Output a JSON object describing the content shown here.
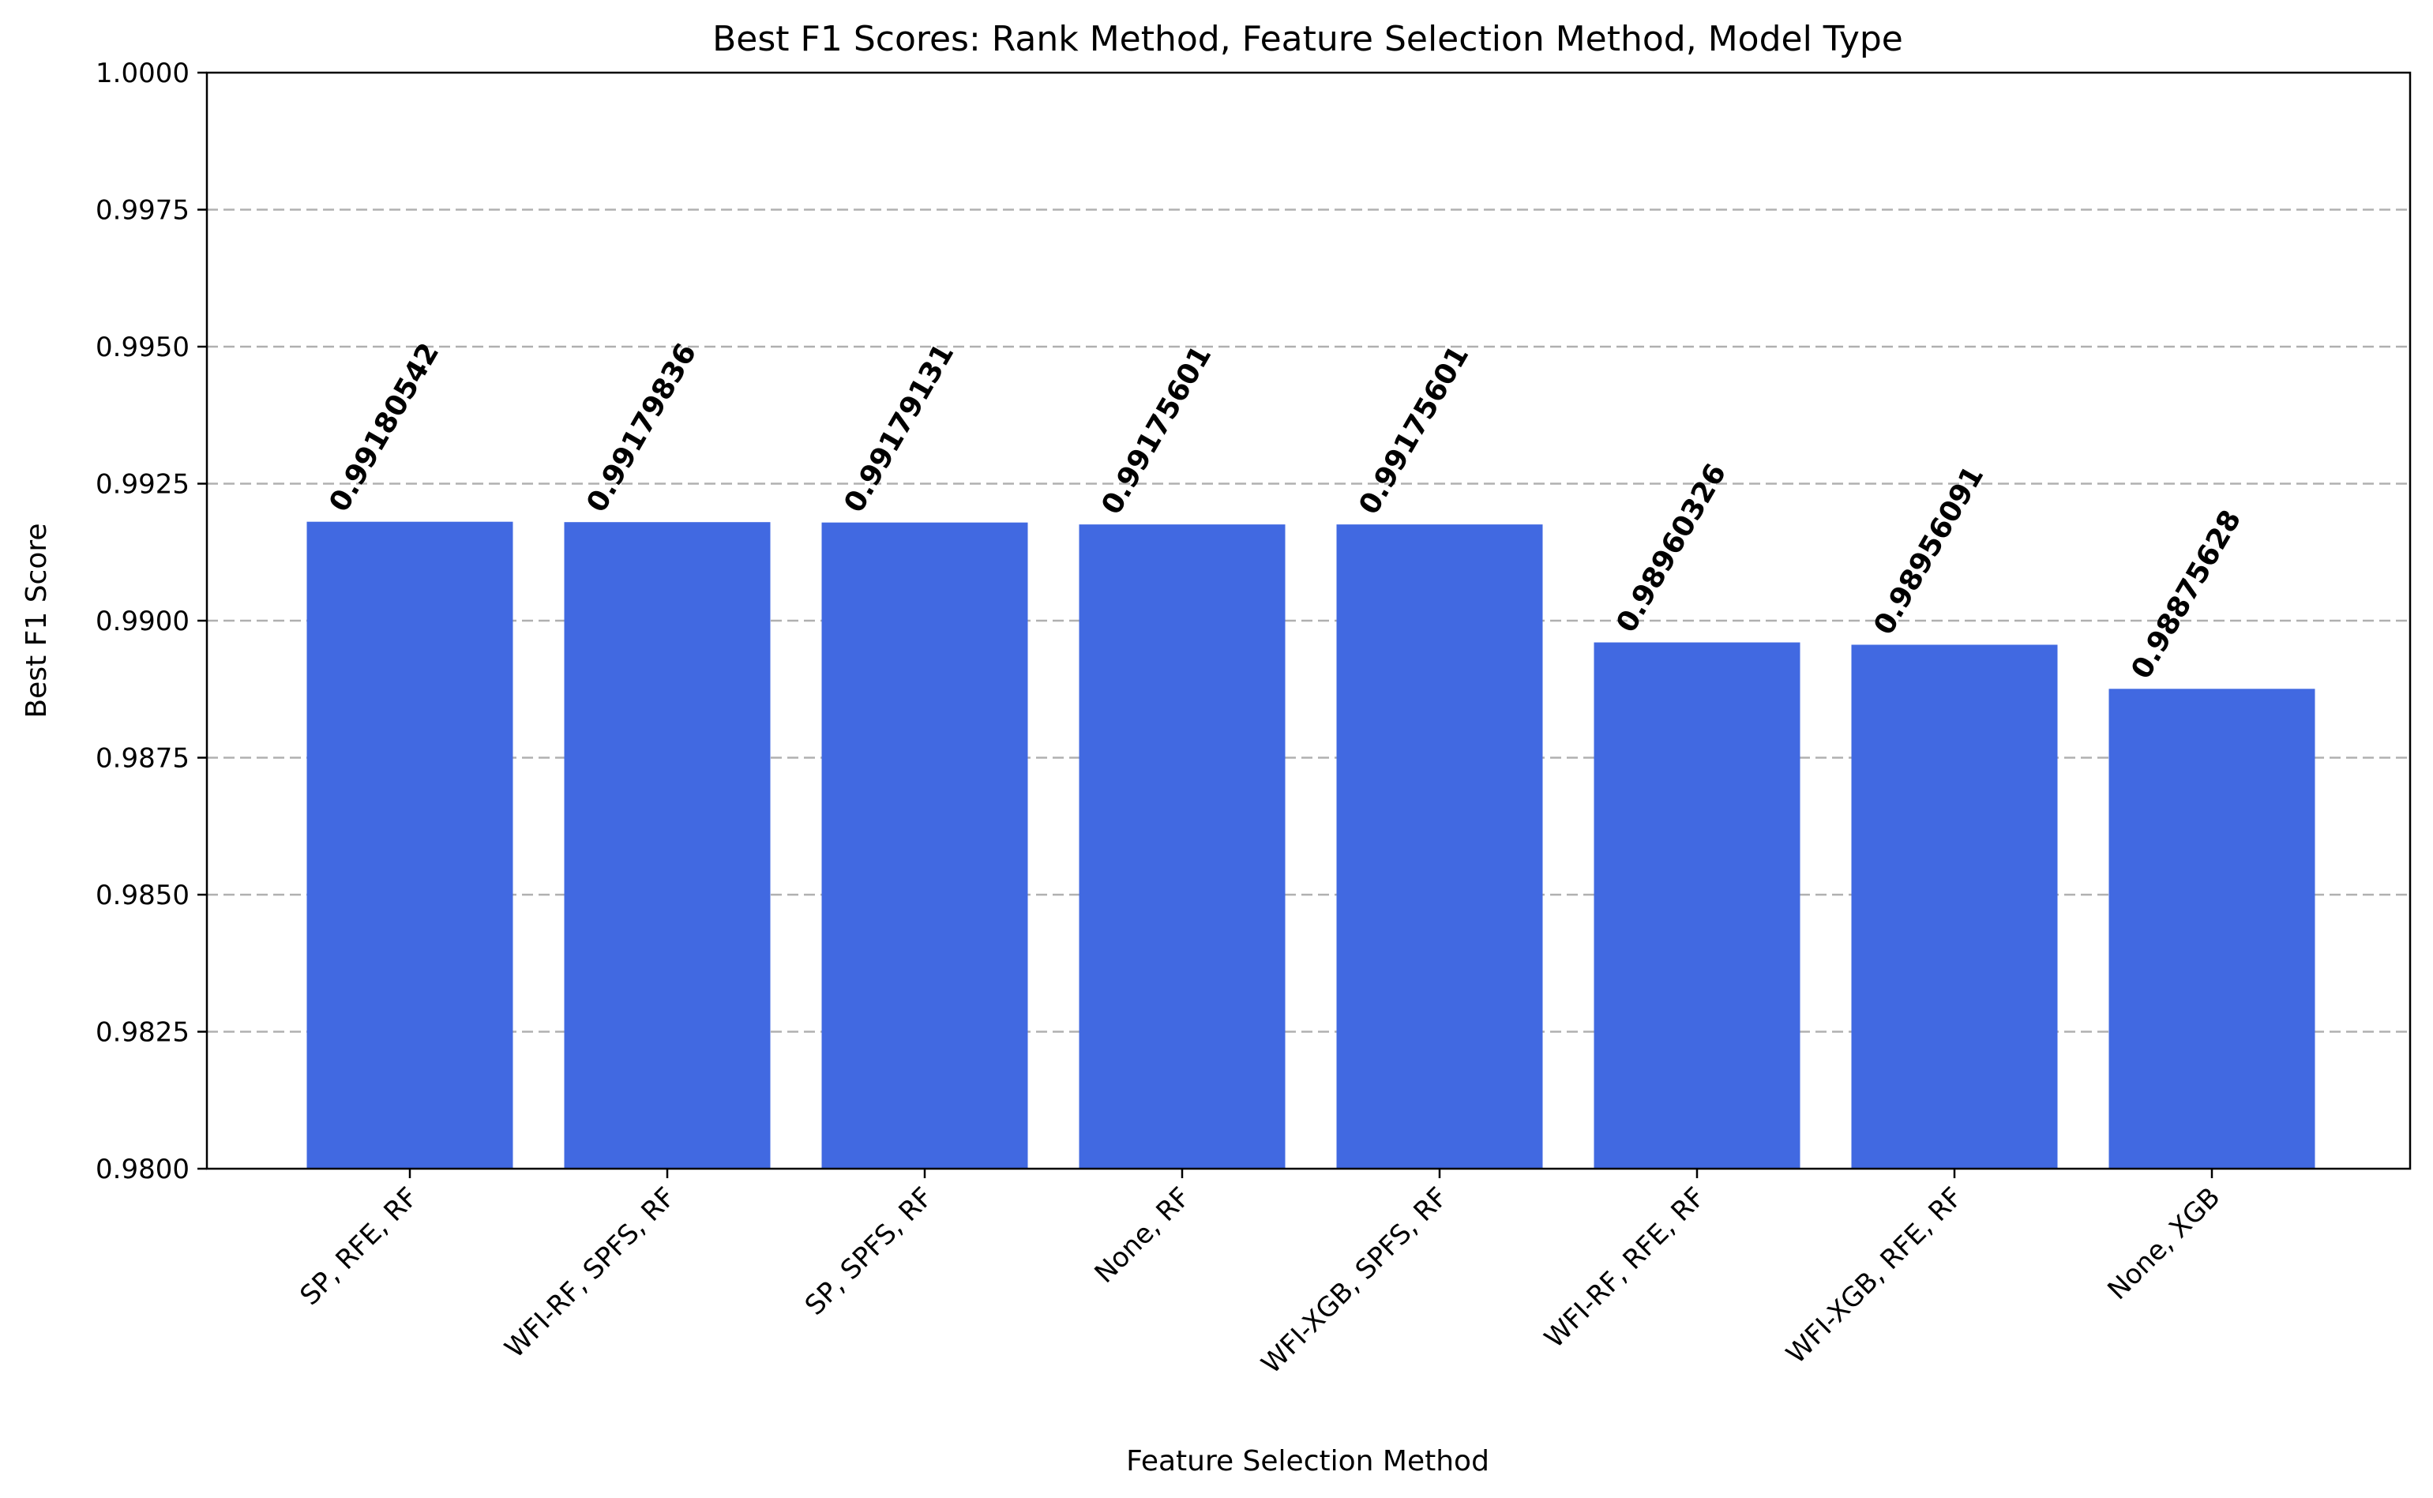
{
  "chart_data": {
    "type": "bar",
    "title": "Best F1 Scores: Rank Method, Feature Selection Method, Model Type",
    "xlabel": "Feature Selection Method",
    "ylabel": "Best F1 Score",
    "ylim": [
      0.98,
      1.0
    ],
    "yticks": [
      0.98,
      0.9825,
      0.985,
      0.9875,
      0.99,
      0.9925,
      0.995,
      0.9975,
      1.0
    ],
    "ytick_labels": [
      "0.9800",
      "0.9825",
      "0.9850",
      "0.9875",
      "0.9900",
      "0.9925",
      "0.9950",
      "0.9975",
      "1.0000"
    ],
    "categories": [
      "SP, RFE, RF",
      "WFI-RF, SPFS, RF",
      "SP, SPFS, RF",
      "None, RF",
      "WFI-XGB, SPFS, RF",
      "WFI-RF, RFE, RF",
      "WFI-XGB, RFE, RF",
      "None, XGB"
    ],
    "values": [
      0.99180542,
      0.99179836,
      0.99179131,
      0.99175601,
      0.99175601,
      0.98960326,
      0.98956091,
      0.98875628
    ],
    "value_labels": [
      "0.99180542",
      "0.99179836",
      "0.99179131",
      "0.99175601",
      "0.99175601",
      "0.98960326",
      "0.98956091",
      "0.98875628"
    ],
    "grid": "y-dashed",
    "bar_color": "#4169e1"
  }
}
